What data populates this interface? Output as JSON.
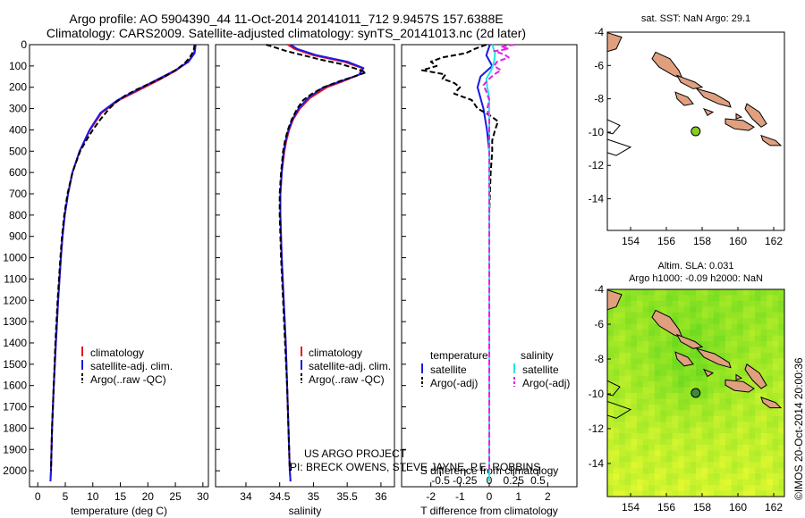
{
  "header": {
    "title_line1": "Argo profile: AO 5904390_44 11-Oct-2014 20141011_712 9.9457S 157.6388E",
    "title_line2": "Climatology: CARS2009. Satellite-adjusted climatology: synTS_20141013.nc (2d later)"
  },
  "colors": {
    "climatology": "#e8141e",
    "satellite": "#1a1ae6",
    "argo": "#000000",
    "sat_salinity": "#22e6e6",
    "argo_salinity": "#e61ee6",
    "land": "#e0a080"
  },
  "credits": {
    "line1": "US ARGO PROJECT",
    "line2": "PI: BRECK OWENS, STEVE JAYNE, P.E. ROBBINS"
  },
  "side_label": "©IMOS 20-Oct-2014 20:00:36",
  "chart_data": [
    {
      "type": "line",
      "name": "temperature",
      "xlabel": "temperature (deg C)",
      "ylabel": "",
      "xlim": [
        -1.5,
        31
      ],
      "ylim": [
        2075,
        0
      ],
      "xticks": [
        0,
        5,
        10,
        15,
        20,
        25,
        30
      ],
      "yticks": [
        0,
        100,
        200,
        300,
        400,
        500,
        600,
        700,
        800,
        900,
        1000,
        1100,
        1200,
        1300,
        1400,
        1500,
        1600,
        1700,
        1800,
        1900,
        2000
      ],
      "legend": [
        "climatology",
        "satellite-adj. clim.",
        "Argo(..raw -QC)"
      ],
      "series": [
        {
          "name": "climatology",
          "depth": [
            0,
            40,
            80,
            120,
            160,
            200,
            260,
            320,
            400,
            500,
            600,
            700,
            800,
            900,
            1000,
            1200,
            1400,
            1600,
            1800,
            2000,
            2050
          ],
          "values": [
            28.6,
            28.4,
            27.3,
            25.2,
            22.4,
            19.4,
            14.8,
            11.6,
            9.5,
            7.6,
            6.3,
            5.5,
            4.9,
            4.5,
            4.2,
            3.7,
            3.3,
            2.9,
            2.6,
            2.4,
            2.3
          ]
        },
        {
          "name": "satellite-adj. clim.",
          "depth": [
            0,
            40,
            80,
            120,
            160,
            200,
            260,
            320,
            400,
            500,
            600,
            700,
            800,
            900,
            1000,
            1200,
            1400,
            1600,
            1800,
            2000,
            2050
          ],
          "values": [
            28.7,
            28.5,
            27.4,
            25.0,
            22.0,
            19.0,
            14.5,
            11.4,
            9.4,
            7.6,
            6.3,
            5.5,
            4.9,
            4.5,
            4.2,
            3.7,
            3.3,
            2.9,
            2.6,
            2.4,
            2.3
          ]
        },
        {
          "name": "Argo",
          "depth": [
            0,
            30,
            60,
            90,
            120,
            150,
            180,
            210,
            240,
            270,
            300,
            350,
            400,
            450,
            500,
            600,
            700,
            800,
            900,
            1000,
            1200,
            1400,
            1600,
            1800,
            2000
          ],
          "values": [
            28.5,
            28.3,
            27.6,
            26.6,
            25.0,
            23.0,
            20.6,
            18.0,
            15.8,
            14.2,
            13.0,
            11.4,
            10.0,
            8.8,
            7.7,
            6.3,
            5.4,
            4.8,
            4.4,
            4.1,
            3.6,
            3.2,
            2.9,
            2.6,
            2.4
          ]
        }
      ]
    },
    {
      "type": "line",
      "name": "salinity",
      "xlabel": "salinity",
      "ylabel": "",
      "xlim": [
        33.55,
        36.2
      ],
      "ylim": [
        2075,
        0
      ],
      "xticks": [
        34,
        34.5,
        35,
        35.5,
        36
      ],
      "legend": [
        "climatology",
        "satellite-adj. clim.",
        "Argo(..raw -QC)"
      ],
      "series": [
        {
          "name": "climatology",
          "depth": [
            0,
            20,
            50,
            80,
            110,
            140,
            170,
            200,
            250,
            300,
            350,
            400,
            450,
            500,
            600,
            700,
            800,
            900,
            1000,
            1200,
            1400,
            1600,
            1800,
            2000,
            2050
          ],
          "values": [
            34.62,
            34.72,
            35.0,
            35.45,
            35.72,
            35.68,
            35.45,
            35.2,
            34.95,
            34.8,
            34.7,
            34.64,
            34.6,
            34.57,
            34.53,
            34.51,
            34.51,
            34.52,
            34.53,
            34.56,
            34.59,
            34.61,
            34.63,
            34.65,
            34.66
          ]
        },
        {
          "name": "satellite-adj. clim.",
          "depth": [
            0,
            20,
            50,
            80,
            110,
            140,
            170,
            200,
            250,
            300,
            350,
            400,
            450,
            500,
            600,
            700,
            800,
            900,
            1000,
            1200,
            1400,
            1600,
            1800,
            2000,
            2050
          ],
          "values": [
            34.66,
            34.76,
            35.05,
            35.5,
            35.74,
            35.68,
            35.42,
            35.15,
            34.92,
            34.78,
            34.69,
            34.63,
            34.59,
            34.56,
            34.53,
            34.51,
            34.51,
            34.52,
            34.53,
            34.56,
            34.59,
            34.61,
            34.63,
            34.65,
            34.66
          ]
        },
        {
          "name": "Argo",
          "depth": [
            0,
            15,
            30,
            50,
            70,
            90,
            110,
            130,
            150,
            170,
            200,
            230,
            260,
            300,
            350,
            400,
            450,
            500,
            600,
            700,
            800,
            900,
            1000,
            1200,
            1400,
            1600,
            1800,
            2000
          ],
          "values": [
            34.3,
            34.45,
            34.6,
            34.85,
            35.1,
            35.4,
            35.6,
            35.78,
            35.6,
            35.4,
            35.15,
            34.98,
            34.85,
            34.76,
            34.68,
            34.62,
            34.58,
            34.55,
            34.52,
            34.5,
            34.5,
            34.51,
            34.52,
            34.55,
            34.58,
            34.61,
            34.63,
            34.65
          ]
        }
      ]
    },
    {
      "type": "line",
      "name": "difference",
      "xlabel": "T difference from climatology",
      "xlabel_top": "S difference from climatology",
      "xlim": [
        -3,
        3
      ],
      "ylim": [
        2075,
        0
      ],
      "xticks": [
        -2,
        -1,
        0,
        1,
        2
      ],
      "xticks_s": [
        -0.5,
        -0.25,
        0,
        0.25,
        0.5
      ],
      "xticklabels_s": [
        "-0.5",
        "-0.25",
        "0",
        "0.25",
        "0.5"
      ],
      "legend": {
        "col1_header": "temperature",
        "col2_header": "salinity",
        "items": [
          "satellite",
          "Argo(-adj)",
          "satellite",
          "Argo(-adj)"
        ]
      },
      "series": [
        {
          "name": "temperature satellite",
          "depth": [
            0,
            50,
            100,
            150,
            200,
            300,
            400,
            500,
            700,
            1000,
            1500,
            2050
          ],
          "values": [
            0.02,
            -0.1,
            0.1,
            -0.3,
            -0.4,
            -0.2,
            -0.08,
            0.0,
            0.0,
            0.0,
            0.0,
            0.0
          ]
        },
        {
          "name": "temperature Argo(-adj)",
          "depth": [
            0,
            20,
            40,
            60,
            80,
            100,
            120,
            140,
            160,
            180,
            200,
            230,
            260,
            300,
            330,
            360,
            400,
            450,
            500,
            600,
            700,
            800,
            1000,
            1200,
            1400,
            1600,
            1800,
            2000
          ],
          "values": [
            -0.1,
            -0.5,
            -0.8,
            -1.6,
            -2.0,
            -1.8,
            -2.3,
            -1.5,
            -1.6,
            -1.2,
            -1.0,
            -1.2,
            -0.6,
            -0.4,
            0.0,
            0.3,
            0.2,
            0.1,
            0.1,
            0.05,
            0.02,
            0.0,
            0.0,
            0.0,
            0.0,
            0.0,
            0.0,
            0.0
          ]
        },
        {
          "name": "salinity satellite",
          "depth": [
            0,
            40,
            80,
            120,
            160,
            200,
            250,
            300,
            400,
            500,
            700,
            1000,
            1500,
            2050
          ],
          "values": [
            0.03,
            0.06,
            0.05,
            0.02,
            -0.03,
            -0.02,
            0.0,
            0.0,
            0.0,
            0.0,
            0.0,
            0.0,
            0.0,
            0.0
          ]
        },
        {
          "name": "salinity Argo(-adj)",
          "depth": [
            0,
            10,
            20,
            30,
            45,
            60,
            80,
            100,
            120,
            140,
            160,
            190,
            220,
            260,
            300,
            350,
            400,
            500,
            600,
            800,
            1000,
            1500,
            2000
          ],
          "values": [
            0.26,
            0.12,
            0.2,
            0.05,
            0.15,
            0.2,
            0.08,
            0.05,
            0.12,
            0.05,
            0.0,
            -0.06,
            -0.03,
            0.0,
            -0.02,
            0.0,
            0.0,
            0.0,
            0.0,
            0.0,
            0.0,
            0.0,
            0.0
          ]
        }
      ]
    },
    {
      "type": "scatter",
      "name": "sst-map",
      "title": "sat. SST: NaN Argo: 29.1",
      "xlim": [
        152.7,
        162.6
      ],
      "ylim": [
        -15.9,
        -4
      ],
      "xticks": [
        154,
        156,
        158,
        160,
        162
      ],
      "yticks": [
        -4,
        -6,
        -8,
        -10,
        -12,
        -14
      ],
      "point": {
        "lon": 157.64,
        "lat": -9.95
      }
    },
    {
      "type": "heatmap",
      "name": "sla-map",
      "title": "Altim. SLA: 0.031",
      "title2": "Argo h1000: -0.09 h2000: NaN",
      "xlim": [
        152.7,
        162.6
      ],
      "ylim": [
        -15.9,
        -4
      ],
      "xticks": [
        154,
        156,
        158,
        160,
        162
      ],
      "yticks": [
        -4,
        -6,
        -8,
        -10,
        -12,
        -14
      ],
      "point": {
        "lon": 157.64,
        "lat": -9.95
      }
    }
  ]
}
